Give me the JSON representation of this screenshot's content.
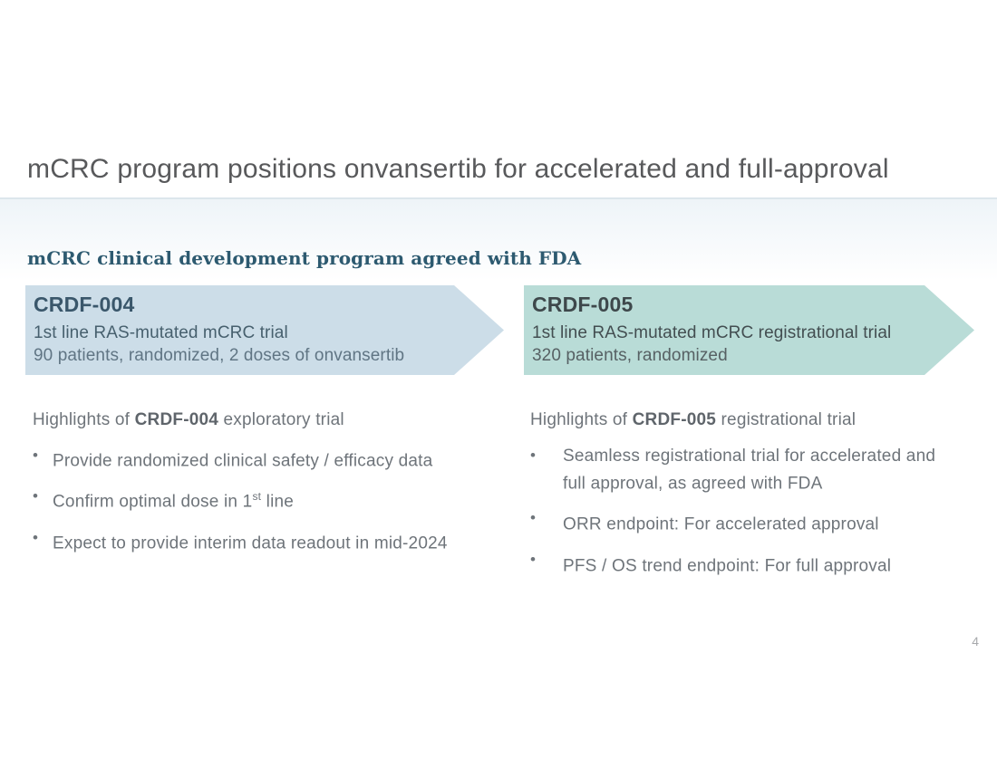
{
  "slide": {
    "title": "mCRC program positions onvansertib for accelerated and full-approval",
    "section_heading": "mCRC clinical development program agreed with FDA",
    "page_number": "4"
  },
  "glyphs": {
    "bullet": "•"
  },
  "banners": [
    {
      "name": "CRDF-004",
      "line1": "1st line RAS-mutated mCRC trial",
      "line2": "90 patients, randomized, 2 doses of onvansertib",
      "bg": "#ccdde8"
    },
    {
      "name": "CRDF-005",
      "line1": "1st line RAS-mutated mCRC registrational trial",
      "line2": "320 patients, randomized",
      "bg": "#b9dcd7"
    }
  ],
  "columns": [
    {
      "heading": {
        "pre": "Highlights of ",
        "bold": "CRDF-004",
        "post": " exploratory trial"
      },
      "bullets": [
        {
          "pre": "Provide randomized clinical safety / efficacy data",
          "sup": "",
          "post": ""
        },
        {
          "pre": "Confirm optimal dose in 1",
          "sup": "st",
          "post": " line"
        },
        {
          "pre": "Expect to provide interim data readout in mid-2024",
          "sup": "",
          "post": ""
        }
      ]
    },
    {
      "heading": {
        "pre": "Highlights of ",
        "bold": "CRDF-005",
        "post": " registrational trial"
      },
      "bullets": [
        {
          "pre": "Seamless registrational trial for accelerated and full approval, as agreed with FDA",
          "sup": "",
          "post": ""
        },
        {
          "pre": "ORR endpoint: For accelerated approval",
          "sup": "",
          "post": ""
        },
        {
          "pre": "PFS / OS trend endpoint: For full approval",
          "sup": "",
          "post": ""
        }
      ]
    }
  ],
  "colors": {
    "title_text": "#58595b",
    "divider": "#dce6ec",
    "band_top": "#eef4f8",
    "section_heading": "#2d5a70",
    "banner1_bg": "#ccdde8",
    "banner1_title": "#3a576b",
    "banner2_bg": "#b9dcd7",
    "banner2_title": "#3e484b",
    "body_text": "#6e747a",
    "page_number": "#a7a9ac"
  }
}
